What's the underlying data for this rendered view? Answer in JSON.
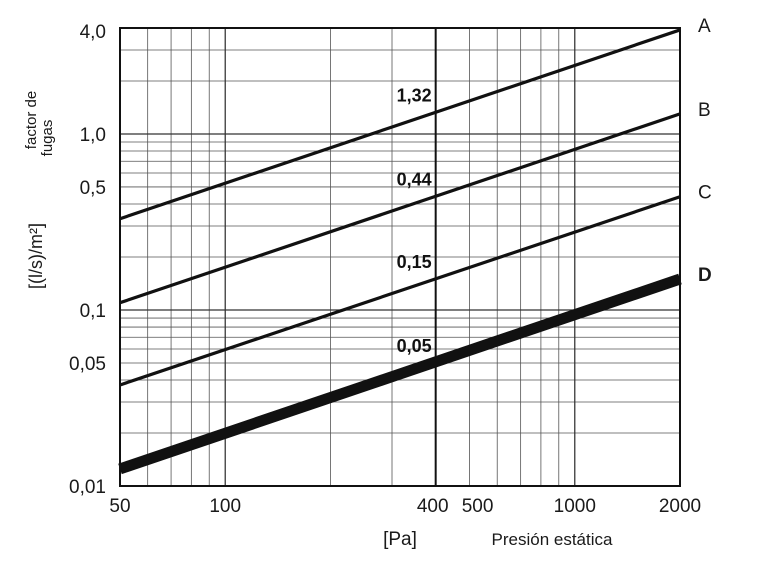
{
  "chart_data": {
    "type": "line",
    "x_scale": "log",
    "y_scale": "log",
    "xlim": [
      50,
      2000
    ],
    "ylim": [
      0.01,
      4.0
    ],
    "grid": true,
    "x_ticks": [
      {
        "value": 50,
        "label": "50"
      },
      {
        "value": 100,
        "label": "100"
      },
      {
        "value": 400,
        "label": "400"
      },
      {
        "value": 500,
        "label": "500"
      },
      {
        "value": 1000,
        "label": "1000"
      },
      {
        "value": 2000,
        "label": "2000"
      }
    ],
    "y_ticks": [
      {
        "value": 0.01,
        "label": "0,01"
      },
      {
        "value": 0.05,
        "label": "0,05"
      },
      {
        "value": 0.1,
        "label": "0,1"
      },
      {
        "value": 0.5,
        "label": "0,5"
      },
      {
        "value": 1.0,
        "label": "1,0"
      },
      {
        "value": 4.0,
        "label": "4,0"
      }
    ],
    "xlabel_unit": "[Pa]",
    "xlabel": "Presión estática",
    "ylabel_line1": "factor de",
    "ylabel_line2": "fugas",
    "ylabel_unit": "[(l/s)/m²]",
    "reference_x": 400,
    "series": [
      {
        "name": "A",
        "bold": false,
        "points": [
          [
            50,
            0.33
          ],
          [
            2000,
            3.9
          ]
        ],
        "annotation": {
          "x": 400,
          "value": 1.32,
          "label": "1,32"
        }
      },
      {
        "name": "B",
        "bold": false,
        "points": [
          [
            50,
            0.11
          ],
          [
            2000,
            1.3
          ]
        ],
        "annotation": {
          "x": 400,
          "value": 0.44,
          "label": "0,44"
        }
      },
      {
        "name": "C",
        "bold": false,
        "points": [
          [
            50,
            0.0375
          ],
          [
            2000,
            0.44
          ]
        ],
        "annotation": {
          "x": 400,
          "value": 0.15,
          "label": "0,15"
        }
      },
      {
        "name": "D",
        "bold": true,
        "points": [
          [
            50,
            0.0125
          ],
          [
            2000,
            0.15
          ]
        ],
        "annotation": {
          "x": 400,
          "value": 0.05,
          "label": "0,05"
        }
      }
    ]
  }
}
